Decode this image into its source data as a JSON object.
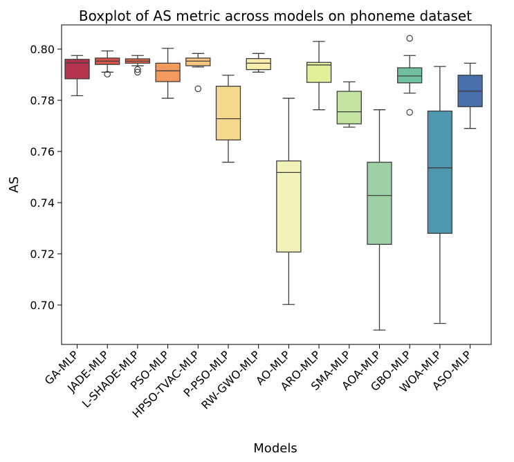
{
  "chart_data": {
    "type": "boxplot",
    "title": "Boxplot of AS metric across models on phoneme dataset",
    "xlabel": "Models",
    "ylabel": "AS",
    "ylim": [
      0.684,
      0.81
    ],
    "yticks": [
      0.7,
      0.72,
      0.74,
      0.76,
      0.78,
      0.8
    ],
    "ytick_labels": [
      "0.70",
      "0.72",
      "0.74",
      "0.76",
      "0.78",
      "0.80"
    ],
    "grid": false,
    "legend": "none",
    "categories": [
      "GA-MLP",
      "JADE-MLP",
      "L-SHADE-MLP",
      "PSO-MLP",
      "HPSO-TVAC-MLP",
      "P-PSO-MLP",
      "RW-GWO-MLP",
      "AO-MLP",
      "ARO-MLP",
      "SMA-MLP",
      "AOA-MLP",
      "GBO-MLP",
      "WOA-MLP",
      "ASO-MLP"
    ],
    "boxes": [
      {
        "name": "GA-MLP",
        "whisker_low": 0.7818,
        "q1": 0.7884,
        "median": 0.7946,
        "q3": 0.796,
        "whisker_high": 0.7975,
        "outliers": [],
        "color": "#b5334f"
      },
      {
        "name": "JADE-MLP",
        "whisker_low": 0.791,
        "q1": 0.794,
        "median": 0.7953,
        "q3": 0.7965,
        "whisker_high": 0.7993,
        "outliers": [
          0.7902
        ],
        "color": "#d9534a"
      },
      {
        "name": "L-SHADE-MLP",
        "whisker_low": 0.7935,
        "q1": 0.7945,
        "median": 0.7953,
        "q3": 0.7962,
        "whisker_high": 0.7975,
        "outliers": [
          0.792,
          0.791
        ],
        "color": "#e8684b"
      },
      {
        "name": "PSO-MLP",
        "whisker_low": 0.7808,
        "q1": 0.7873,
        "median": 0.7915,
        "q3": 0.7945,
        "whisker_high": 0.8003,
        "outliers": [],
        "color": "#f59a5e"
      },
      {
        "name": "HPSO-TVAC-MLP",
        "whisker_low": 0.793,
        "q1": 0.7935,
        "median": 0.7953,
        "q3": 0.7965,
        "whisker_high": 0.7983,
        "outliers": [
          0.7845
        ],
        "color": "#fbc47f"
      },
      {
        "name": "P-PSO-MLP",
        "whisker_low": 0.7558,
        "q1": 0.7645,
        "median": 0.7728,
        "q3": 0.7855,
        "whisker_high": 0.7898,
        "outliers": [],
        "color": "#f6d98f"
      },
      {
        "name": "RW-GWO-MLP",
        "whisker_low": 0.791,
        "q1": 0.792,
        "median": 0.7945,
        "q3": 0.7963,
        "whisker_high": 0.7983,
        "outliers": [],
        "color": "#f9efad"
      },
      {
        "name": "AO-MLP",
        "whisker_low": 0.7002,
        "q1": 0.7207,
        "median": 0.7518,
        "q3": 0.7563,
        "whisker_high": 0.7808,
        "outliers": [],
        "color": "#f1f3b8"
      },
      {
        "name": "ARO-MLP",
        "whisker_low": 0.7763,
        "q1": 0.787,
        "median": 0.7938,
        "q3": 0.7948,
        "whisker_high": 0.803,
        "outliers": [],
        "color": "#e3f099"
      },
      {
        "name": "SMA-MLP",
        "whisker_low": 0.7695,
        "q1": 0.7708,
        "median": 0.7755,
        "q3": 0.7835,
        "whisker_high": 0.7872,
        "outliers": [],
        "color": "#c4e3a2"
      },
      {
        "name": "AOA-MLP",
        "whisker_low": 0.6902,
        "q1": 0.7237,
        "median": 0.7428,
        "q3": 0.7558,
        "whisker_high": 0.7763,
        "outliers": [],
        "color": "#9dd0a4"
      },
      {
        "name": "GBO-MLP",
        "whisker_low": 0.7828,
        "q1": 0.7868,
        "median": 0.7895,
        "q3": 0.7927,
        "whisker_high": 0.7975,
        "outliers": [
          0.8042,
          0.7753
        ],
        "color": "#6dbf9f"
      },
      {
        "name": "WOA-MLP",
        "whisker_low": 0.6928,
        "q1": 0.728,
        "median": 0.7536,
        "q3": 0.7758,
        "whisker_high": 0.7932,
        "outliers": [],
        "color": "#4d97af"
      },
      {
        "name": "ASO-MLP",
        "whisker_low": 0.769,
        "q1": 0.7775,
        "median": 0.7836,
        "q3": 0.7898,
        "whisker_high": 0.7945,
        "outliers": [],
        "color": "#4a6fad"
      }
    ]
  }
}
